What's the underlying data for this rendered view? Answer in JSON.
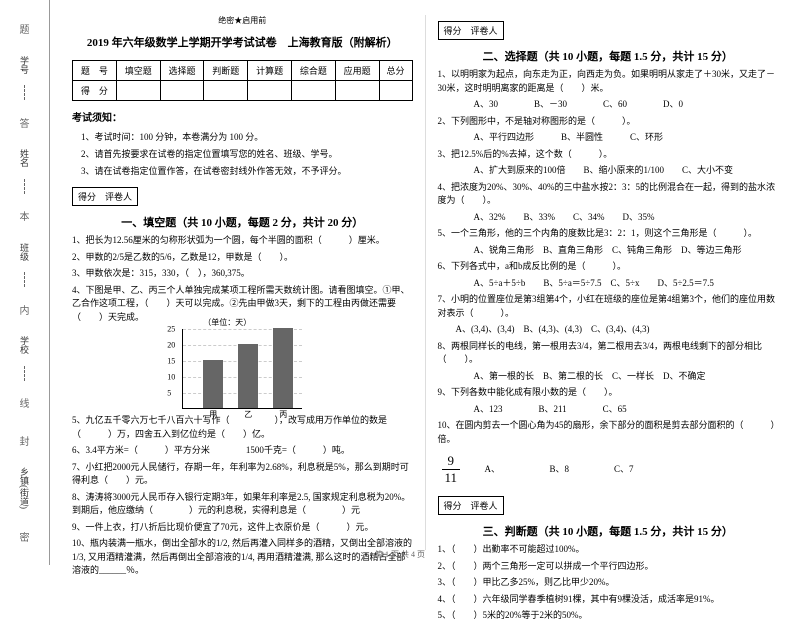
{
  "binding": {
    "labels": [
      "学号",
      "姓名",
      "班级",
      "学校",
      "乡镇(街道)"
    ],
    "chars": [
      "题",
      "答",
      "本",
      "内",
      "线",
      "封",
      "密"
    ]
  },
  "header": {
    "mark": "绝密★启用前",
    "title": "2019 年六年级数学上学期开学考试试卷　上海教育版（附解析）"
  },
  "scoreTable": {
    "row1": [
      "题　号",
      "填空题",
      "选择题",
      "判断题",
      "计算题",
      "综合题",
      "应用题",
      "总分"
    ],
    "row2": [
      "得　分",
      "",
      "",
      "",
      "",
      "",
      "",
      ""
    ]
  },
  "notice": {
    "title": "考试须知：",
    "items": [
      "1、考试时间：100 分钟，本卷满分为 100 分。",
      "2、请首先按要求在试卷的指定位置填写您的姓名、班级、学号。",
      "3、请在试卷指定位置作答，在试卷密封线外作答无效，不予评分。"
    ]
  },
  "sectionBox": "得分　评卷人",
  "sec1": {
    "title": "一、填空题（共 10 小题，每题 2 分，共计 20 分）",
    "q": [
      "1、把长为12.56厘米的匀称形状弧为一个圆，每个半圆的面积（　　　）厘米。",
      "2、甲数的2/5是乙数的5/6，乙数是12，甲数是（　　）。",
      "3、甲数依次是：315，330，（　），360,375。",
      "4、下图是甲、乙、丙三个人单独完成某项工程所需天数统计图。请看图填空。①甲、乙合作这项工程，（　　）天可以完成。②先由甲做3天，剩下的工程由丙做还需要（　　）天完成。"
    ]
  },
  "chart": {
    "unit_label": "（单位：天）",
    "y_ticks": [
      5,
      10,
      15,
      20,
      25
    ],
    "y_max": 25,
    "bars": [
      {
        "label": "甲",
        "value": 15,
        "x": 20
      },
      {
        "label": "乙",
        "value": 20,
        "x": 55
      },
      {
        "label": "丙",
        "value": 25,
        "x": 90
      }
    ]
  },
  "sec1b": {
    "q": [
      "5、九亿五千零六万七千八百六十写作（　　　　　），改写成用万作单位的数是（　　　）万，四舍五入到亿位约是（　　）亿。",
      "6、3.4平方米=（　　　）平方分米　　　　1500千克=（　　　）吨。",
      "7、小红把2000元人民储行，存期一年，年利率为2.68%，利息税是5%，那么到期时可得利息（　　）元。",
      "8、涛涛将3000元人民币存入银行定期3年，如果年利率是2.5,  国家规定利息税为20%。到期后，他应缴纳（　　　　）元的利息税，实得利息是（　　　　）元",
      "9、一件上衣，打八折后比现价便宜了70元，这件上衣原价是（　　　）元。",
      "10、瓶内装满一瓶水，倒出全部水的1/2,  然后再灌入同样多的酒精，又倒出全部溶液的1/3,  又用酒精灌满，然后再倒出全部溶液的1/4,  再用酒精灌满,  那么这时的酒精占全部溶液的______％。"
    ]
  },
  "sec2": {
    "title": "二、选择题（共 10 小题，每题 1.5 分，共计 15 分）",
    "q": [
      "1、以明明家为起点，向东走为正，向西走为负。如果明明从家走了＋30米，又走了－30米，这时明明离家的距离是（　　）米。",
      "　　　　A、30　　　　B、－30　　　　C、60　　　　D、0",
      "2、下列图形中，不是轴对称图形的是（　　　）。",
      "　　　　A、平行四边形　　　B、半圆性　　　C、环形",
      "3、把12.5%后的%去掉，这个数（　　　）。",
      "　　　　A、扩大到原来的100倍　　B、缩小原来的1/100　　C、大小不变",
      "4、把浓度为20%、30%、40%的三中盐水按2：3：5的比例混合在一起，得到的盐水浓度为（　　）。",
      "　　　　A、32%　　B、33%　　C、34%　　D、35%",
      "5、一个三角形，他的三个内角的度数比是3：2：1，则这个三角形是（　　　）。",
      "　　　　A、锐角三角形　B、直角三角形　C、钝角三角形　D、等边三角形",
      "6、下列各式中，a和b成反比例的是（　　　）。",
      "　　　　A、5÷a＋5÷b　　B、5÷a＝5÷7.5　C、5÷x　　D、5÷2.5＝7.5",
      "7、小明的位置座位是第3组第4个，小红在班级的座位是第4组第3个，他们的座位用数对表示（　　　）。",
      "　　A、(3,4)、(3,4)　B、(4,3)、(4,3)　C、(3,4)、(4,3)",
      "8、两根同样长的电线，第一根用去3/4，第二根用去3/4，两根电线剩下的部分相比（　　）。",
      "　　　　A、第一根的长　B、第二根的长　C、一样长　D、不确定",
      "9、下列各数中能化成有限小数的是（　　）。",
      "　　　　A、123　　　　B、211　　　　C、65",
      "10、在圆内剪去一个圆心角为45的扇形，余下部分的面积是剪去部分面积的（　　　）倍。"
    ],
    "frac": {
      "num": "9",
      "den": "11"
    },
    "opts": "　　A、　　　　　　B、8　　　　　C、7"
  },
  "sec3": {
    "title": "三、判断题（共 10 小题，每题 1.5 分，共计 15 分）",
    "q": [
      "1、（　　）出勤率不可能超过100%。",
      "2、（　　）两个三角形一定可以拼成一个平行四边形。",
      "3、（　　）甲比乙多25%，则乙比甲少20%。",
      "4、（　　）六年级同学春季植树91棵，其中有9棵没活，成活率是91%。",
      "5、（　　）5米的20%等于2米的50%。"
    ]
  },
  "footer": "第 1 页 共 4 页"
}
